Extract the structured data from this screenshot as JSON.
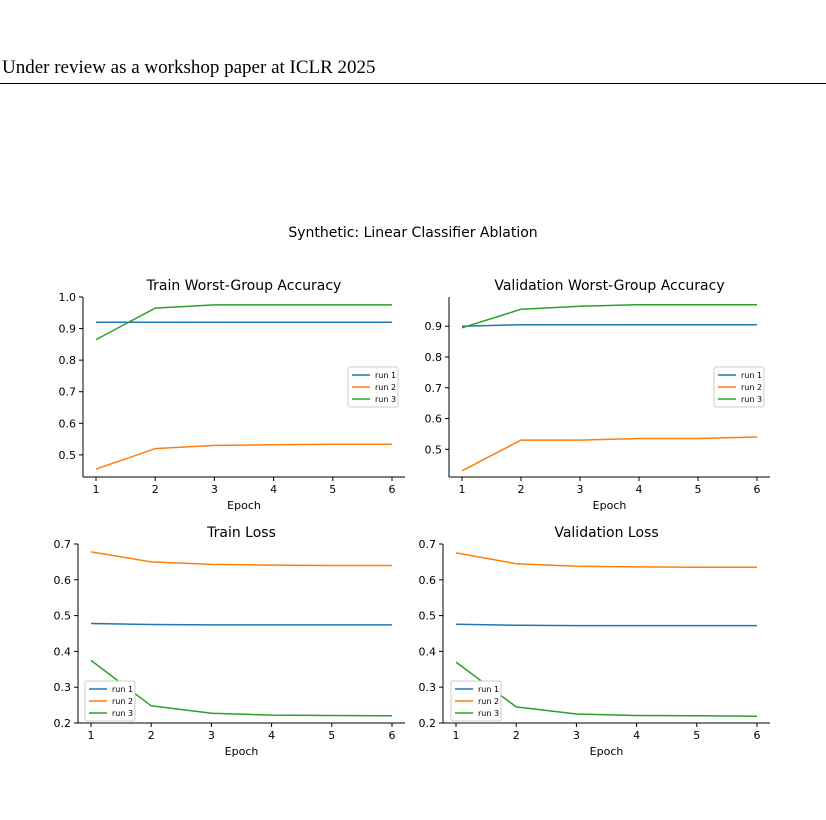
{
  "page": {
    "header": "Under review as a workshop paper at ICLR 2025"
  },
  "figure": {
    "suptitle": "Synthetic: Linear Classifier Ablation",
    "colors": {
      "run 1": "#1f77b4",
      "run 2": "#ff7f0e",
      "run 3": "#2ca02c"
    }
  },
  "chart_data": [
    {
      "type": "line",
      "title": "Train Worst-Group Accuracy",
      "xlabel": "Epoch",
      "ylabel": "",
      "x": [
        1,
        2,
        3,
        4,
        5,
        6
      ],
      "ylim": [
        0.43,
        1.0
      ],
      "yticks": [
        0.5,
        0.6,
        0.7,
        0.8,
        0.9,
        1.0
      ],
      "yticklabels": [
        "0.5",
        "0.6",
        "0.7",
        "0.8",
        "0.9",
        "1.0"
      ],
      "legend": "right",
      "series": [
        {
          "name": "run 1",
          "values": [
            0.92,
            0.92,
            0.92,
            0.92,
            0.92,
            0.92
          ]
        },
        {
          "name": "run 2",
          "values": [
            0.455,
            0.52,
            0.53,
            0.532,
            0.534,
            0.534
          ]
        },
        {
          "name": "run 3",
          "values": [
            0.865,
            0.965,
            0.975,
            0.975,
            0.975,
            0.975
          ]
        }
      ]
    },
    {
      "type": "line",
      "title": "Validation Worst-Group Accuracy",
      "xlabel": "Epoch",
      "ylabel": "",
      "x": [
        1,
        2,
        3,
        4,
        5,
        6
      ],
      "ylim": [
        0.41,
        0.995
      ],
      "yticks": [
        0.5,
        0.6,
        0.7,
        0.8,
        0.9
      ],
      "yticklabels": [
        "0.5",
        "0.6",
        "0.7",
        "0.8",
        "0.9"
      ],
      "legend": "right",
      "series": [
        {
          "name": "run 1",
          "values": [
            0.9,
            0.905,
            0.905,
            0.905,
            0.905,
            0.905
          ]
        },
        {
          "name": "run 2",
          "values": [
            0.43,
            0.53,
            0.53,
            0.535,
            0.535,
            0.54
          ]
        },
        {
          "name": "run 3",
          "values": [
            0.895,
            0.955,
            0.965,
            0.97,
            0.97,
            0.97
          ]
        }
      ]
    },
    {
      "type": "line",
      "title": "Train Loss",
      "xlabel": "Epoch",
      "ylabel": "",
      "x": [
        1,
        2,
        3,
        4,
        5,
        6
      ],
      "ylim": [
        0.2,
        0.7
      ],
      "yticks": [
        0.2,
        0.3,
        0.4,
        0.5,
        0.6,
        0.7
      ],
      "yticklabels": [
        "0.2",
        "0.3",
        "0.4",
        "0.5",
        "0.6",
        "0.7"
      ],
      "legend": "lower left",
      "series": [
        {
          "name": "run 1",
          "values": [
            0.478,
            0.475,
            0.474,
            0.474,
            0.474,
            0.474
          ]
        },
        {
          "name": "run 2",
          "values": [
            0.678,
            0.65,
            0.643,
            0.641,
            0.64,
            0.64
          ]
        },
        {
          "name": "run 3",
          "values": [
            0.375,
            0.248,
            0.227,
            0.222,
            0.221,
            0.22
          ]
        }
      ]
    },
    {
      "type": "line",
      "title": "Validation Loss",
      "xlabel": "Epoch",
      "ylabel": "",
      "x": [
        1,
        2,
        3,
        4,
        5,
        6
      ],
      "ylim": [
        0.2,
        0.7
      ],
      "yticks": [
        0.2,
        0.3,
        0.4,
        0.5,
        0.6,
        0.7
      ],
      "yticklabels": [
        "0.2",
        "0.3",
        "0.4",
        "0.5",
        "0.6",
        "0.7"
      ],
      "legend": "lower left",
      "series": [
        {
          "name": "run 1",
          "values": [
            0.476,
            0.473,
            0.472,
            0.472,
            0.472,
            0.472
          ]
        },
        {
          "name": "run 2",
          "values": [
            0.675,
            0.645,
            0.638,
            0.636,
            0.635,
            0.635
          ]
        },
        {
          "name": "run 3",
          "values": [
            0.37,
            0.245,
            0.225,
            0.221,
            0.22,
            0.219
          ]
        }
      ]
    }
  ]
}
